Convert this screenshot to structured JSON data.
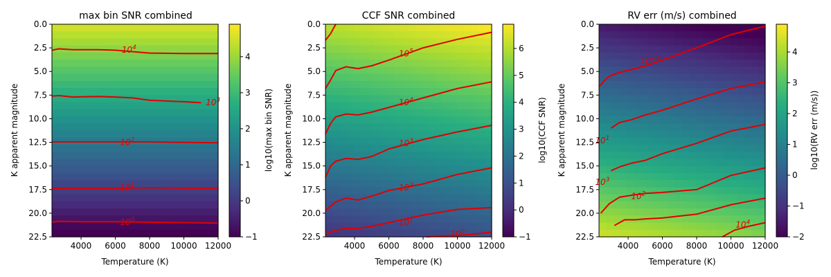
{
  "chart_data": [
    {
      "type": "heatmap",
      "title": "max bin SNR combined",
      "xlabel": "Temperature (K)",
      "ylabel": "K apparent magnitude",
      "xlim": [
        2300,
        12000
      ],
      "ylim": [
        22.5,
        0
      ],
      "xticks": [
        4000,
        6000,
        8000,
        10000,
        12000
      ],
      "xtick_labels": [
        "4000",
        "6000",
        "8000",
        "10000",
        "12000"
      ],
      "yticks": [
        0,
        2.5,
        5,
        7.5,
        10,
        12.5,
        15,
        17.5,
        20,
        22.5
      ],
      "ytick_labels": [
        "0.0",
        "2.5",
        "5.0",
        "7.5",
        "10.0",
        "12.5",
        "15.0",
        "17.5",
        "20.0",
        "22.5"
      ],
      "colormap": "viridis",
      "colorbar": {
        "label": "log10(max bin SNR)",
        "range": [
          -1,
          4.9
        ],
        "ticks": [
          -1,
          0,
          1,
          2,
          3,
          4
        ],
        "tick_labels": [
          "−1",
          "0",
          "1",
          "2",
          "3",
          "4"
        ]
      },
      "surface": {
        "base": 4.55,
        "mag_slope": -0.254,
        "temp_slope": 0.0,
        "temp_ref": 2300
      },
      "contour_color": "#e00000",
      "contours": [
        {
          "level": 4,
          "base": "10",
          "exp": "4",
          "label_at": [
            6800,
            2.7
          ],
          "points": [
            [
              2300,
              2.75
            ],
            [
              2700,
              2.6
            ],
            [
              3500,
              2.7
            ],
            [
              5000,
              2.7
            ],
            [
              6000,
              2.75
            ],
            [
              8000,
              3.05
            ],
            [
              10000,
              3.1
            ],
            [
              12000,
              3.1
            ]
          ]
        },
        {
          "level": 3,
          "base": "10",
          "exp": "3",
          "label_at": [
            11700,
            8.3
          ],
          "points": [
            [
              2300,
              7.6
            ],
            [
              2700,
              7.55
            ],
            [
              3500,
              7.7
            ],
            [
              5000,
              7.65
            ],
            [
              6000,
              7.7
            ],
            [
              7000,
              7.8
            ],
            [
              8000,
              8.05
            ],
            [
              10000,
              8.2
            ],
            [
              11000,
              8.3
            ]
          ]
        },
        {
          "level": 2,
          "base": "10",
          "exp": "2",
          "label_at": [
            6700,
            12.5
          ],
          "points": [
            [
              2300,
              12.45
            ],
            [
              4000,
              12.45
            ],
            [
              6000,
              12.45
            ],
            [
              8000,
              12.45
            ],
            [
              10000,
              12.5
            ],
            [
              12000,
              12.55
            ]
          ]
        },
        {
          "level": 1,
          "base": "10",
          "exp": "1",
          "label_at": [
            6700,
            17.3
          ],
          "points": [
            [
              2300,
              17.35
            ],
            [
              4000,
              17.35
            ],
            [
              6000,
              17.35
            ],
            [
              8000,
              17.3
            ],
            [
              10000,
              17.35
            ],
            [
              12000,
              17.35
            ]
          ]
        },
        {
          "level": 0,
          "base": "10",
          "exp": "0",
          "label_at": [
            6700,
            20.95
          ],
          "points": [
            [
              2300,
              20.95
            ],
            [
              2700,
              20.85
            ],
            [
              4000,
              20.9
            ],
            [
              6000,
              20.9
            ],
            [
              8000,
              20.95
            ],
            [
              10000,
              21.0
            ],
            [
              12000,
              21.05
            ]
          ]
        }
      ]
    },
    {
      "type": "heatmap",
      "title": "CCF SNR combined",
      "xlabel": "Temperature (K)",
      "ylabel": "K apparent magnitude",
      "xlim": [
        2300,
        12000
      ],
      "ylim": [
        22.5,
        0
      ],
      "xticks": [
        4000,
        6000,
        8000,
        10000,
        12000
      ],
      "xtick_labels": [
        "4000",
        "6000",
        "8000",
        "10000",
        "12000"
      ],
      "yticks": [
        0,
        2.5,
        5,
        7.5,
        10,
        12.5,
        15,
        17.5,
        20,
        22.5
      ],
      "ytick_labels": [
        "0.0",
        "2.5",
        "5.0",
        "7.5",
        "10.0",
        "12.5",
        "15.0",
        "17.5",
        "20.0",
        "22.5"
      ],
      "colormap": "viridis",
      "colorbar": {
        "label": "log10(CCF SNR)",
        "range": [
          -1,
          6.9
        ],
        "ticks": [
          -1,
          0,
          1,
          2,
          3,
          4,
          5,
          6
        ],
        "tick_labels": [
          "−1",
          "0",
          "1",
          "2",
          "3",
          "4",
          "5",
          "6"
        ]
      },
      "surface": {
        "base": 6.1,
        "mag_slope": -0.265,
        "temp_slope": 8.5e-05,
        "temp_ref": 2300
      },
      "contour_color": "#e00000",
      "contours": [
        {
          "level": 6,
          "base": "10",
          "exp": "6",
          "label_at": [
            null,
            null
          ],
          "points": [
            [
              2300,
              1.7
            ],
            [
              2600,
              1.0
            ],
            [
              2900,
              0.0
            ]
          ]
        },
        {
          "level": 5,
          "base": "10",
          "exp": "5",
          "label_at": [
            7000,
            3.1
          ],
          "points": [
            [
              2300,
              6.8
            ],
            [
              2600,
              5.9
            ],
            [
              2900,
              4.9
            ],
            [
              3500,
              4.5
            ],
            [
              4200,
              4.7
            ],
            [
              5000,
              4.4
            ],
            [
              6000,
              3.8
            ],
            [
              8000,
              2.5
            ],
            [
              10000,
              1.6
            ],
            [
              12000,
              0.85
            ]
          ]
        },
        {
          "level": 4,
          "base": "10",
          "exp": "4",
          "label_at": [
            7000,
            8.3
          ],
          "points": [
            [
              2300,
              11.6
            ],
            [
              2600,
              10.5
            ],
            [
              2900,
              9.8
            ],
            [
              3500,
              9.5
            ],
            [
              4200,
              9.6
            ],
            [
              5000,
              9.3
            ],
            [
              6000,
              8.8
            ],
            [
              8000,
              7.8
            ],
            [
              10000,
              6.8
            ],
            [
              12000,
              6.1
            ]
          ]
        },
        {
          "level": 3,
          "base": "10",
          "exp": "3",
          "label_at": [
            7000,
            12.6
          ],
          "points": [
            [
              2300,
              16.2
            ],
            [
              2600,
              15.0
            ],
            [
              2900,
              14.5
            ],
            [
              3500,
              14.2
            ],
            [
              4200,
              14.3
            ],
            [
              5000,
              14.0
            ],
            [
              6000,
              13.2
            ],
            [
              8000,
              12.2
            ],
            [
              10000,
              11.4
            ],
            [
              12000,
              10.7
            ]
          ]
        },
        {
          "level": 2,
          "base": "10",
          "exp": "2",
          "label_at": [
            7000,
            17.3
          ],
          "points": [
            [
              2300,
              19.7
            ],
            [
              2900,
              18.8
            ],
            [
              3500,
              18.4
            ],
            [
              4200,
              18.6
            ],
            [
              5000,
              18.2
            ],
            [
              6000,
              17.6
            ],
            [
              8000,
              16.9
            ],
            [
              10000,
              15.9
            ],
            [
              12000,
              15.2
            ]
          ]
        },
        {
          "level": 1,
          "base": "10",
          "exp": "1",
          "label_at": [
            7000,
            21.0
          ],
          "points": [
            [
              2300,
              22.2
            ],
            [
              2900,
              21.8
            ],
            [
              3500,
              21.6
            ],
            [
              4200,
              21.6
            ],
            [
              5000,
              21.4
            ],
            [
              6000,
              21.0
            ],
            [
              8000,
              20.2
            ],
            [
              10000,
              19.6
            ],
            [
              12000,
              19.4
            ]
          ]
        },
        {
          "level": 0,
          "base": "10",
          "exp": "0",
          "label_at": [
            10000,
            22.2
          ],
          "points": [
            [
              8200,
              22.5
            ],
            [
              9000,
              22.4
            ],
            [
              10500,
              22.3
            ],
            [
              12000,
              22.0
            ]
          ]
        }
      ]
    },
    {
      "type": "heatmap",
      "title": "RV err (m/s) combined",
      "xlabel": "Temperature (K)",
      "ylabel": "K apparent magnitude",
      "xlim": [
        2300,
        12000
      ],
      "ylim": [
        22.5,
        0
      ],
      "xticks": [
        4000,
        6000,
        8000,
        10000,
        12000
      ],
      "xtick_labels": [
        "4000",
        "6000",
        "8000",
        "10000",
        "12000"
      ],
      "yticks": [
        0,
        2.5,
        5,
        7.5,
        10,
        12.5,
        15,
        17.5,
        20,
        22.5
      ],
      "ytick_labels": [
        "0.0",
        "2.5",
        "5.0",
        "7.5",
        "10.0",
        "12.5",
        "15.0",
        "17.5",
        "20.0",
        "22.5"
      ],
      "colormap": "viridis",
      "colorbar": {
        "label": "log10(RV err (m/s))",
        "range": [
          -2,
          4.9
        ],
        "ticks": [
          -2,
          -1,
          0,
          1,
          2,
          3,
          4
        ],
        "tick_labels": [
          "−2",
          "−1",
          "0",
          "1",
          "2",
          "3",
          "4"
        ]
      },
      "surface": {
        "base": -1.55,
        "mag_slope": 0.265,
        "temp_slope": -8.5e-05,
        "temp_ref": 2300
      },
      "contour_color": "#e00000",
      "contours": [
        {
          "level": -1,
          "base": "10",
          "exp": "−1",
          "label_at": [
            5300,
            3.9
          ],
          "points": [
            [
              2300,
              6.6
            ],
            [
              2600,
              6.0
            ],
            [
              2900,
              5.5
            ],
            [
              3500,
              5.1
            ],
            [
              4200,
              4.8
            ],
            [
              5000,
              4.4
            ],
            [
              6000,
              3.8
            ],
            [
              8000,
              2.5
            ],
            [
              10000,
              1.1
            ],
            [
              12000,
              0.2
            ]
          ]
        },
        {
          "level": 0,
          "base": "10",
          "exp": "0",
          "label_at": null,
          "points": [
            [
              3000,
              11.0
            ],
            [
              3500,
              10.4
            ],
            [
              4200,
              10.1
            ],
            [
              5000,
              9.6
            ],
            [
              6000,
              9.1
            ],
            [
              8000,
              7.9
            ],
            [
              10000,
              6.8
            ],
            [
              12000,
              6.1
            ]
          ]
        },
        {
          "level": 1,
          "base": "10",
          "exp": "1",
          "label_at": [
            2500,
            12.3
          ],
          "points": [
            [
              3000,
              15.5
            ],
            [
              3500,
              15.1
            ],
            [
              4200,
              14.7
            ],
            [
              5000,
              14.4
            ],
            [
              6000,
              13.7
            ],
            [
              8000,
              12.6
            ],
            [
              10000,
              11.3
            ],
            [
              12000,
              10.6
            ]
          ]
        },
        {
          "level": 2,
          "base": "10",
          "exp": "2",
          "label_at": [
            4600,
            18.2
          ],
          "points": [
            [
              2400,
              20.0
            ],
            [
              2900,
              19.0
            ],
            [
              3500,
              18.3
            ],
            [
              4200,
              18.1
            ],
            [
              5000,
              17.9
            ],
            [
              6000,
              17.8
            ],
            [
              8000,
              17.5
            ],
            [
              10000,
              16.0
            ],
            [
              12000,
              15.2
            ]
          ]
        },
        {
          "level": 3,
          "base": "10",
          "exp": "3",
          "label_at": [
            2500,
            16.7
          ],
          "points": [
            [
              3200,
              21.3
            ],
            [
              3800,
              20.7
            ],
            [
              4400,
              20.7
            ],
            [
              5000,
              20.6
            ],
            [
              6000,
              20.5
            ],
            [
              8000,
              20.1
            ],
            [
              10000,
              19.1
            ],
            [
              12000,
              18.4
            ]
          ]
        },
        {
          "level": 4,
          "base": "10",
          "exp": "4",
          "label_at": [
            10700,
            21.2
          ],
          "points": [
            [
              9500,
              22.5
            ],
            [
              10200,
              21.8
            ],
            [
              11000,
              21.4
            ],
            [
              12000,
              21.0
            ]
          ]
        }
      ]
    }
  ]
}
